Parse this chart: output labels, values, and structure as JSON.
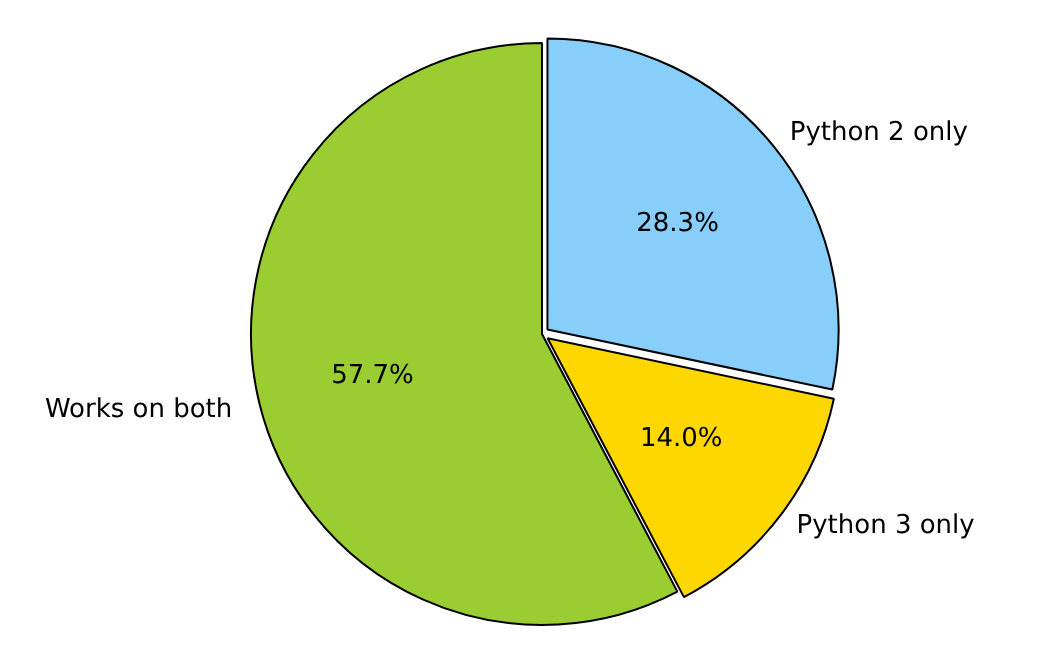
{
  "chart_data": {
    "type": "pie",
    "categories": [
      "Python 2 only",
      "Python 3 only",
      "Works on both"
    ],
    "values": [
      28.3,
      14.0,
      57.7
    ],
    "colors": [
      "#87cefa",
      "#ffd700",
      "#9acd32"
    ],
    "value_labels": [
      "28.3%",
      "14.0%",
      "57.7%"
    ],
    "legend": false
  }
}
